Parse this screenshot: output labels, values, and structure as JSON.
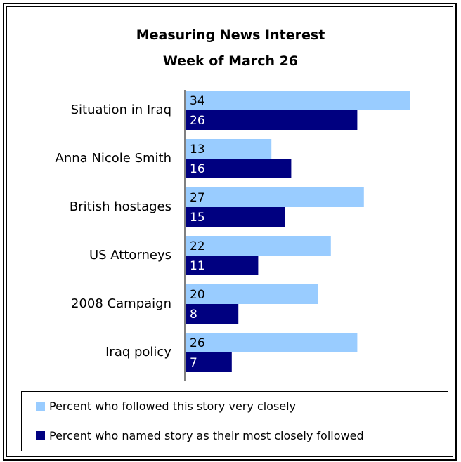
{
  "chart_data": {
    "type": "bar",
    "orientation": "horizontal",
    "title": "Measuring News Interest",
    "subtitle": "Week of March 26",
    "categories": [
      "Situation in Iraq",
      "Anna Nicole Smith",
      "British hostages",
      "US Attorneys",
      "2008 Campaign",
      "Iraq policy"
    ],
    "series": [
      {
        "name": "Percent who followed this story very closely",
        "values": [
          34,
          13,
          27,
          22,
          20,
          26
        ],
        "color": "#99CCFF",
        "label_color": "#000000"
      },
      {
        "name": "Percent who named story as their most closely followed",
        "values": [
          26,
          16,
          15,
          11,
          8,
          7
        ],
        "color": "#000080",
        "label_color": "#FFFFFF"
      }
    ],
    "xlim": [
      0,
      36
    ],
    "grid": false,
    "legend_position": "bottom"
  }
}
